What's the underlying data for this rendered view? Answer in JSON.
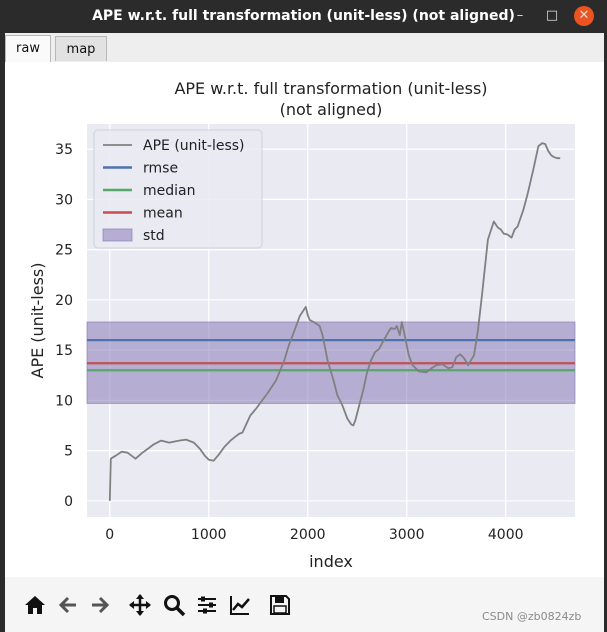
{
  "window": {
    "title": "APE w.r.t. full transformation (unit-less) (not aligned)",
    "min_glyph": "–",
    "max_glyph": "□",
    "close_glyph": "✕"
  },
  "tabs": [
    {
      "label": "raw",
      "active": true
    },
    {
      "label": "map",
      "active": false
    }
  ],
  "toolbar": {
    "icons": [
      "home-icon",
      "back-arrow-icon",
      "forward-arrow-icon",
      "pan-icon",
      "zoom-icon",
      "subplots-config-icon",
      "edit-axis-icon",
      "save-icon"
    ]
  },
  "watermark": "CSDN @zb0824zb",
  "chart_data": {
    "type": "line",
    "title": "APE w.r.t. full transformation (unit-less)",
    "subtitle": "(not aligned)",
    "xlabel": "index",
    "ylabel": "APE (unit-less)",
    "xlim": [
      -230,
      4700
    ],
    "ylim": [
      -1.6,
      37.5
    ],
    "xticks": [
      0,
      1000,
      2000,
      3000,
      4000
    ],
    "yticks": [
      0,
      5,
      10,
      15,
      20,
      25,
      30,
      35
    ],
    "grid": true,
    "legend": {
      "position": "upper-left",
      "entries": [
        "APE (unit-less)",
        "rmse",
        "median",
        "mean",
        "std"
      ]
    },
    "series": [
      {
        "name": "APE (unit-less)",
        "color": "#808080",
        "x": [
          0,
          10,
          60,
          120,
          180,
          260,
          330,
          400,
          440,
          520,
          600,
          700,
          770,
          850,
          910,
          960,
          1000,
          1050,
          1100,
          1160,
          1220,
          1270,
          1310,
          1340,
          1420,
          1480,
          1540,
          1600,
          1680,
          1760,
          1810,
          1860,
          1920,
          1960,
          1980,
          2000,
          2020,
          2060,
          2120,
          2150,
          2200,
          2260,
          2300,
          2350,
          2400,
          2440,
          2460,
          2480,
          2520,
          2560,
          2600,
          2640,
          2680,
          2720,
          2780,
          2840,
          2880,
          2900,
          2930,
          2950,
          2980,
          3000,
          3020,
          3060,
          3120,
          3200,
          3250,
          3300,
          3360,
          3420,
          3460,
          3500,
          3540,
          3580,
          3620,
          3680,
          3720,
          3760,
          3820,
          3880,
          3920,
          3950,
          3980,
          4020,
          4060,
          4090,
          4120,
          4180,
          4220,
          4280,
          4330,
          4370,
          4400,
          4430,
          4460,
          4490,
          4520,
          4550
        ],
        "values": [
          0.0,
          4.2,
          4.5,
          4.9,
          4.8,
          4.2,
          4.8,
          5.3,
          5.6,
          6.0,
          5.8,
          6.0,
          6.1,
          5.8,
          5.2,
          4.5,
          4.1,
          4.0,
          4.6,
          5.4,
          6.0,
          6.4,
          6.7,
          6.8,
          8.5,
          9.2,
          10.0,
          10.8,
          12.0,
          13.9,
          15.5,
          16.8,
          18.4,
          19.0,
          19.3,
          18.5,
          18.0,
          17.8,
          17.4,
          16.5,
          14.0,
          12.0,
          10.5,
          9.5,
          8.2,
          7.6,
          7.5,
          8.0,
          9.5,
          11.0,
          12.8,
          14.0,
          14.8,
          15.1,
          16.2,
          17.2,
          17.1,
          17.4,
          16.5,
          17.8,
          16.5,
          15.5,
          14.5,
          13.5,
          12.9,
          12.8,
          13.2,
          13.5,
          13.6,
          13.2,
          13.3,
          14.3,
          14.6,
          14.2,
          13.5,
          14.5,
          17.0,
          20.5,
          26.0,
          27.8,
          27.2,
          27.0,
          26.6,
          26.5,
          26.2,
          27.0,
          27.3,
          29.0,
          30.5,
          33.0,
          35.3,
          35.6,
          35.5,
          34.8,
          34.4,
          34.2,
          34.1,
          34.1
        ]
      },
      {
        "name": "rmse",
        "color": "#4c72b0",
        "value": 16.0
      },
      {
        "name": "median",
        "color": "#55a868",
        "value": 13.0
      },
      {
        "name": "mean",
        "color": "#c44e52",
        "value": 13.7
      },
      {
        "name": "std",
        "color": "#8172b2",
        "range": [
          9.7,
          17.8
        ]
      }
    ]
  }
}
